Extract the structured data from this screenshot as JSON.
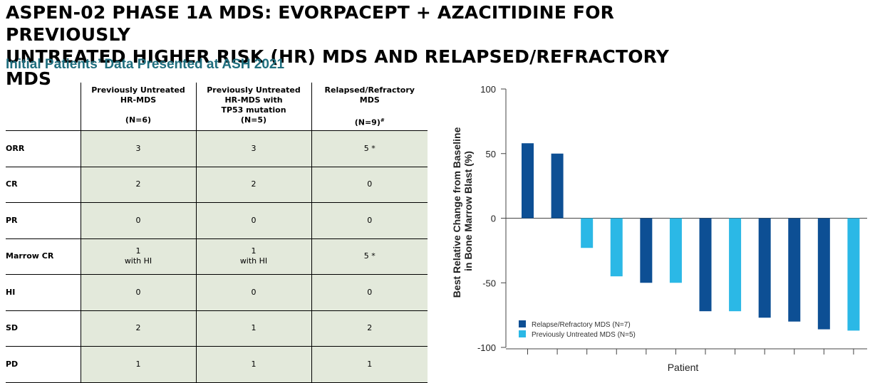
{
  "header": {
    "title_line1": "ASPEN-02 PHASE 1A MDS: EVORPACEPT + AZACITIDINE FOR PREVIOUSLY",
    "title_line2": "UNTREATED HIGHER RISK (HR) MDS AND RELAPSED/REFRACTORY MDS",
    "subtitle": "Initial Patients’ Data Presented at ASH 2021"
  },
  "table": {
    "columns": [
      {
        "lines": [
          "Previously Untreated",
          "HR-MDS"
        ],
        "n": "(N=6)",
        "n_sup": ""
      },
      {
        "lines": [
          "Previously Untreated",
          "HR-MDS with",
          "TP53 mutation"
        ],
        "n": "(N=5)",
        "n_sup": ""
      },
      {
        "lines": [
          "Relapsed/Refractory",
          "MDS"
        ],
        "n": "(N=9)",
        "n_sup": "#"
      }
    ],
    "rows": [
      {
        "label": "ORR",
        "values": [
          "3",
          "3",
          "5 *"
        ]
      },
      {
        "label": "CR",
        "values": [
          "2",
          "2",
          "0"
        ]
      },
      {
        "label": "PR",
        "values": [
          "0",
          "0",
          "0"
        ]
      },
      {
        "label": "Marrow CR",
        "values": [
          "1\nwith HI",
          "1\nwith HI",
          "5 *"
        ]
      },
      {
        "label": "HI",
        "values": [
          "0",
          "0",
          "0"
        ]
      },
      {
        "label": "SD",
        "values": [
          "2",
          "1",
          "2"
        ]
      },
      {
        "label": "PD",
        "values": [
          "1",
          "1",
          "1"
        ]
      }
    ]
  },
  "chart_data": {
    "type": "bar",
    "xlabel": "Patient",
    "ylabel": "Best Relative Change from Baseline in Bone Marrow Blast (%)",
    "ylabel_line1": "Best Relative Change from Baseline",
    "ylabel_line2": "in Bone Marrow Blast (%)",
    "ylim": [
      -100,
      100
    ],
    "yticks": [
      "100",
      "50",
      "0",
      "-50",
      "-100"
    ],
    "ytick_values": [
      100,
      50,
      0,
      -50,
      -100
    ],
    "grid": false,
    "legend_position": "bottom-left",
    "series": [
      {
        "name": "Relapse/Refractory MDS (N=7)",
        "color": "#0d4f94"
      },
      {
        "name": "Previously Untreated MDS (N=5)",
        "color": "#2bb8e6"
      }
    ],
    "bars": [
      {
        "value": 58,
        "series": 0
      },
      {
        "value": 50,
        "series": 0
      },
      {
        "value": -23,
        "series": 1
      },
      {
        "value": -45,
        "series": 1
      },
      {
        "value": -50,
        "series": 0
      },
      {
        "value": -50,
        "series": 1
      },
      {
        "value": -72,
        "series": 0
      },
      {
        "value": -72,
        "series": 1
      },
      {
        "value": -77,
        "series": 0
      },
      {
        "value": -80,
        "series": 0
      },
      {
        "value": -86,
        "series": 0
      },
      {
        "value": -87,
        "series": 1
      }
    ]
  }
}
